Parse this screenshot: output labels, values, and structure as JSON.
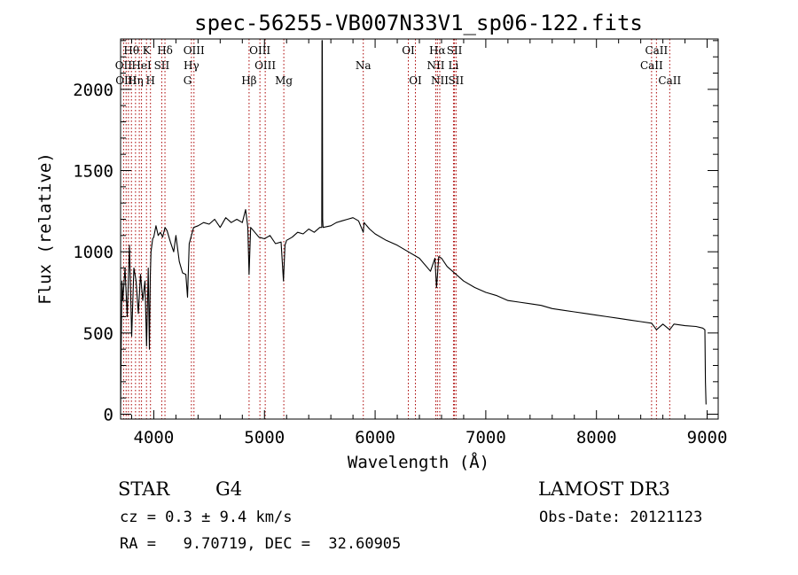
{
  "chart_data": {
    "type": "line",
    "title": "spec-56255-VB007N33V1_sp06-122.fits",
    "xlabel": "Wavelength (Å)",
    "ylabel": "Flux (relative)",
    "xlim": [
      3700,
      9100
    ],
    "ylim": [
      -30,
      2310
    ],
    "x_ticks": [
      4000,
      5000,
      6000,
      7000,
      8000,
      9000
    ],
    "x_tick_labels": [
      "4000",
      "5000",
      "6000",
      "7000",
      "8000",
      "9000"
    ],
    "y_ticks": [
      0,
      500,
      1000,
      1500,
      2000
    ],
    "y_tick_labels": [
      "0",
      "500",
      "1000",
      "1500",
      "2000"
    ],
    "series": [
      {
        "name": "flux",
        "color": "#000000",
        "x": [
          3700,
          3705,
          3712,
          3720,
          3740,
          3760,
          3780,
          3800,
          3820,
          3840,
          3860,
          3880,
          3900,
          3920,
          3935,
          3950,
          3960,
          3968,
          3975,
          3990,
          4000,
          4020,
          4040,
          4060,
          4080,
          4101,
          4120,
          4150,
          4180,
          4200,
          4230,
          4260,
          4290,
          4305,
          4320,
          4340,
          4360,
          4400,
          4450,
          4500,
          4550,
          4600,
          4650,
          4700,
          4750,
          4800,
          4830,
          4850,
          4861,
          4875,
          4900,
          4950,
          5000,
          5050,
          5100,
          5150,
          5172,
          5185,
          5200,
          5250,
          5300,
          5350,
          5400,
          5450,
          5500,
          5518,
          5520,
          5523,
          5526,
          5530,
          5600,
          5650,
          5700,
          5750,
          5800,
          5850,
          5893,
          5900,
          5950,
          6000,
          6100,
          6200,
          6300,
          6400,
          6500,
          6540,
          6555,
          6563,
          6575,
          6600,
          6650,
          6700,
          6800,
          6900,
          7000,
          7100,
          7200,
          7300,
          7400,
          7500,
          7600,
          7700,
          7800,
          7900,
          8000,
          8100,
          8200,
          8300,
          8400,
          8498,
          8542,
          8600,
          8662,
          8700,
          8800,
          8900,
          8960,
          8980,
          8985,
          8990
        ],
        "y": [
          0,
          380,
          820,
          700,
          900,
          600,
          1040,
          480,
          900,
          820,
          620,
          860,
          700,
          820,
          420,
          900,
          400,
          850,
          1000,
          1080,
          1090,
          1160,
          1100,
          1120,
          1090,
          1150,
          1130,
          1060,
          1000,
          1100,
          940,
          870,
          860,
          720,
          1050,
          1100,
          1150,
          1160,
          1180,
          1170,
          1200,
          1150,
          1210,
          1180,
          1200,
          1180,
          1260,
          1150,
          860,
          1150,
          1130,
          1090,
          1080,
          1100,
          1050,
          1060,
          820,
          1040,
          1070,
          1090,
          1120,
          1110,
          1140,
          1120,
          1150,
          1150,
          2300,
          2300,
          1200,
          1150,
          1160,
          1180,
          1190,
          1200,
          1210,
          1190,
          1120,
          1180,
          1140,
          1110,
          1070,
          1040,
          1000,
          960,
          880,
          960,
          780,
          850,
          970,
          960,
          910,
          880,
          820,
          780,
          750,
          730,
          700,
          690,
          680,
          670,
          650,
          640,
          630,
          620,
          610,
          600,
          590,
          580,
          570,
          560,
          520,
          555,
          520,
          555,
          545,
          540,
          530,
          520,
          200,
          60
        ]
      }
    ],
    "annotations": {
      "line_markers": [
        3727,
        3750,
        3771,
        3798,
        3835,
        3869,
        3889,
        3934,
        3970,
        4072,
        4101,
        4340,
        4363,
        4861,
        4959,
        5007,
        5175,
        5893,
        6300,
        6364,
        6548,
        6563,
        6584,
        6708,
        6717,
        6731,
        8498,
        8542,
        8662
      ],
      "top_labels": [
        {
          "text": "Hθ",
          "wl": 3798,
          "row": 1
        },
        {
          "text": "K",
          "wl": 3934,
          "row": 1
        },
        {
          "text": "Hδ",
          "wl": 4101,
          "row": 1
        },
        {
          "text": "OIII",
          "wl": 4363,
          "row": 1
        },
        {
          "text": "OIII",
          "wl": 4959,
          "row": 1
        },
        {
          "text": "OI",
          "wl": 6300,
          "row": 1
        },
        {
          "text": "Hα",
          "wl": 6563,
          "row": 1
        },
        {
          "text": "SII",
          "wl": 6717,
          "row": 1
        },
        {
          "text": "CaII",
          "wl": 8542,
          "row": 1
        },
        {
          "text": "OII",
          "wl": 3727,
          "row": 2
        },
        {
          "text": "HeI",
          "wl": 3889,
          "row": 2
        },
        {
          "text": "SII",
          "wl": 4072,
          "row": 2
        },
        {
          "text": "Hγ",
          "wl": 4340,
          "row": 2
        },
        {
          "text": "OIII",
          "wl": 5007,
          "row": 2
        },
        {
          "text": "Na",
          "wl": 5893,
          "row": 2
        },
        {
          "text": "NII",
          "wl": 6548,
          "row": 2
        },
        {
          "text": "Li",
          "wl": 6708,
          "row": 2
        },
        {
          "text": "CaII",
          "wl": 8498,
          "row": 2
        },
        {
          "text": "OIII",
          "wl": 3750,
          "row": 3
        },
        {
          "text": "Hη",
          "wl": 3835,
          "row": 3
        },
        {
          "text": "H",
          "wl": 3970,
          "row": 3
        },
        {
          "text": "G",
          "wl": 4305,
          "row": 3
        },
        {
          "text": "Hβ",
          "wl": 4861,
          "row": 3
        },
        {
          "text": "Mg",
          "wl": 5175,
          "row": 3
        },
        {
          "text": "OI",
          "wl": 6364,
          "row": 3
        },
        {
          "text": "NII",
          "wl": 6584,
          "row": 3
        },
        {
          "text": "SII",
          "wl": 6731,
          "row": 3
        },
        {
          "text": "CaII",
          "wl": 8662,
          "row": 3
        }
      ]
    }
  },
  "info": {
    "class_label": "STAR",
    "subclass": "G4",
    "survey": "LAMOST DR3",
    "cz_line": "cz = 0.3 ± 9.4 km/s",
    "obs_date": "Obs-Date: 20121123",
    "coords": "RA =   9.70719, DEC =  32.60905"
  },
  "colors": {
    "spectrum": "#000000",
    "marker": "#aa0000",
    "axes": "#000000",
    "background": "#ffffff"
  }
}
